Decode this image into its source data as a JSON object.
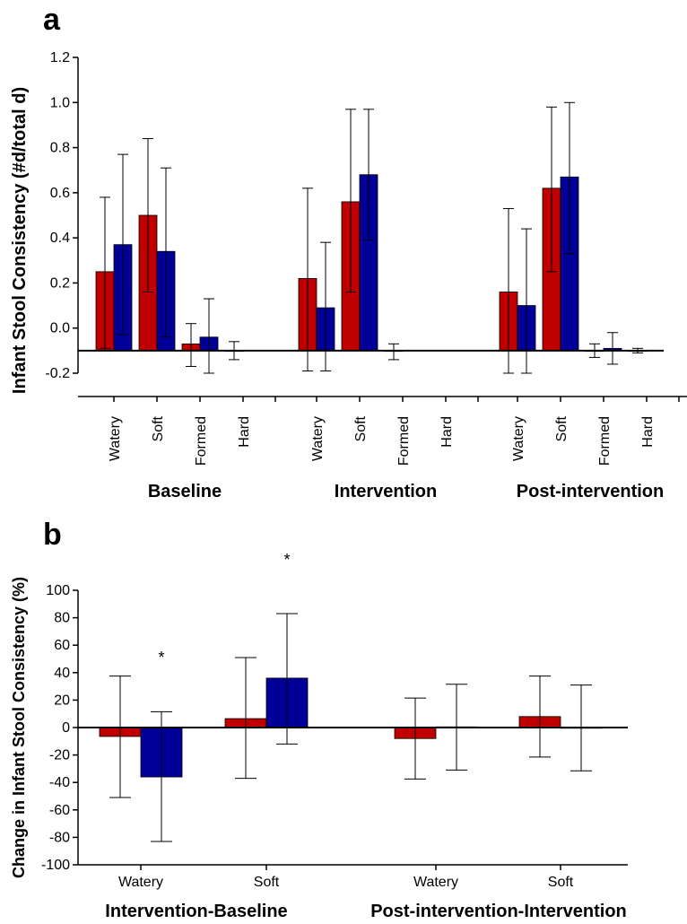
{
  "colors": {
    "red": "#c00000",
    "blue": "#000099",
    "axis": "#000000"
  },
  "chart_data": [
    {
      "panel": "a",
      "type": "bar",
      "ylabel": "Infant Stool Consistency (#d/total d)",
      "ylim": [
        -0.25,
        1.2
      ],
      "yticks": [
        -0.2,
        0.0,
        0.2,
        0.4,
        0.6,
        0.8,
        1.0,
        1.2
      ],
      "ytick_labels": [
        "-0.2",
        "0.0",
        "0.2",
        "0.4",
        "0.6",
        "0.8",
        "1.0",
        "1.2"
      ],
      "baseline": -0.1,
      "groups": [
        {
          "label": "Baseline",
          "categories": [
            "Watery",
            "Soft",
            "Formed",
            "Hard"
          ],
          "red": {
            "values": [
              0.25,
              0.5,
              -0.07,
              -0.1
            ],
            "err_low": [
              -0.09,
              0.16,
              -0.17,
              -0.14
            ],
            "err_high": [
              0.58,
              0.84,
              0.02,
              -0.06
            ]
          },
          "blue": {
            "values": [
              0.37,
              0.34,
              -0.04,
              null
            ],
            "err_low": [
              -0.03,
              -0.04,
              -0.2,
              null
            ],
            "err_high": [
              0.77,
              0.71,
              0.13,
              null
            ]
          }
        },
        {
          "label": "Intervention",
          "categories": [
            "Watery",
            "Soft",
            "Formed",
            "Hard"
          ],
          "red": {
            "values": [
              0.22,
              0.56,
              -0.1,
              null
            ],
            "err_low": [
              -0.19,
              0.16,
              -0.14,
              null
            ],
            "err_high": [
              0.62,
              0.97,
              -0.07,
              null
            ]
          },
          "blue": {
            "values": [
              0.09,
              0.68,
              null,
              null
            ],
            "err_low": [
              -0.19,
              0.39,
              null,
              null
            ],
            "err_high": [
              0.38,
              0.97,
              null,
              null
            ]
          }
        },
        {
          "label": "Post-intervention",
          "categories": [
            "Watery",
            "Soft",
            "Formed",
            "Hard"
          ],
          "red": {
            "values": [
              0.16,
              0.62,
              -0.1,
              -0.1
            ],
            "err_low": [
              -0.2,
              0.25,
              -0.13,
              -0.11
            ],
            "err_high": [
              0.53,
              0.98,
              -0.07,
              -0.09
            ]
          },
          "blue": {
            "values": [
              0.1,
              0.67,
              -0.09,
              null
            ],
            "err_low": [
              -0.2,
              0.33,
              -0.16,
              null
            ],
            "err_high": [
              0.44,
              1.0,
              -0.02,
              null
            ]
          }
        }
      ]
    },
    {
      "panel": "b",
      "type": "bar",
      "ylabel": "Change in Infant Stool Consistency (%)",
      "ylim": [
        -100,
        100
      ],
      "yticks": [
        -100,
        -80,
        -60,
        -40,
        -20,
        0,
        20,
        40,
        60,
        80,
        100
      ],
      "ytick_labels": [
        "-100",
        "-80",
        "-60",
        "-40",
        "-20",
        "0",
        "20",
        "40",
        "60",
        "80",
        "100"
      ],
      "groups": [
        {
          "label": "Intervention-Baseline",
          "categories": [
            "Watery",
            "Soft"
          ],
          "red": {
            "values": [
              -6.5,
              6.5
            ],
            "err_low": [
              -51,
              -37
            ],
            "err_high": [
              37.5,
              51
            ]
          },
          "blue": {
            "values": [
              -36,
              36
            ],
            "err_low": [
              -83,
              -12
            ],
            "err_high": [
              11.5,
              83
            ]
          },
          "significance": [
            {
              "category": "Watery",
              "series": "blue",
              "text": "*",
              "y": 55
            },
            {
              "category": "Soft",
              "series": "blue",
              "text": "*",
              "y": 125
            }
          ]
        },
        {
          "label": "Post-intervention-Intervention",
          "categories": [
            "Watery",
            "Soft"
          ],
          "red": {
            "values": [
              -8,
              8
            ],
            "err_low": [
              -37.5,
              -21.5
            ],
            "err_high": [
              21.5,
              37.5
            ]
          },
          "blue": {
            "values": [
              0.5,
              -0.5
            ],
            "err_low": [
              -31,
              -31.5
            ],
            "err_high": [
              31.5,
              31
            ]
          }
        }
      ]
    }
  ]
}
